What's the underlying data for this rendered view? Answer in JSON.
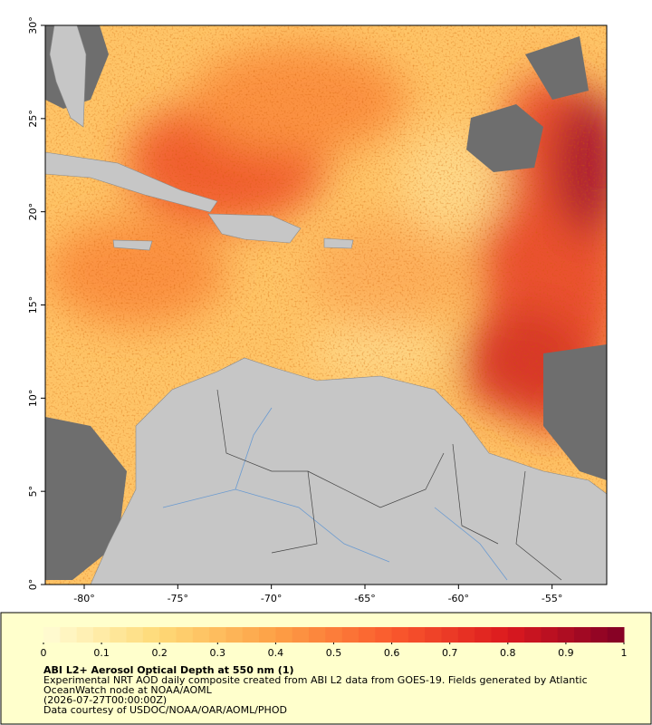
{
  "map": {
    "lon_lim": [
      -82.08,
      -52.08
    ],
    "lat_lim": [
      0,
      30
    ],
    "lon_ticks": [
      {
        "value": -80,
        "label": "-80°"
      },
      {
        "value": -75,
        "label": "-75°"
      },
      {
        "value": -70,
        "label": "-70°"
      },
      {
        "value": -65,
        "label": "-65°"
      },
      {
        "value": -60,
        "label": "-60°"
      },
      {
        "value": -55,
        "label": "-55°"
      }
    ],
    "lat_ticks": [
      {
        "value": 0,
        "label": "0°"
      },
      {
        "value": 5,
        "label": "5°"
      },
      {
        "value": 10,
        "label": "10°"
      },
      {
        "value": 15,
        "label": "15°"
      },
      {
        "value": 20,
        "label": "20°"
      },
      {
        "value": 25,
        "label": "25°"
      },
      {
        "value": 30,
        "label": "30°"
      }
    ],
    "colorbar": {
      "range": [
        0,
        1
      ],
      "ticks": [
        0,
        0.1,
        0.2,
        0.3,
        0.4,
        0.5,
        0.6,
        0.7,
        0.8,
        0.9,
        1
      ]
    },
    "title": "ABI L2+ Aerosol Optical Depth at 550 nm (1)",
    "description": [
      "Experimental NRT AOD daily composite created from ABI L2 data from GOES-19. Fields generated by Atlantic",
      "OceanWatch node at NOAA/AOML",
      "(2026-07-27T00:00:00Z)",
      "Data courtesy of USDOC/NOAA/OAR/AOML/PHOD"
    ]
  }
}
